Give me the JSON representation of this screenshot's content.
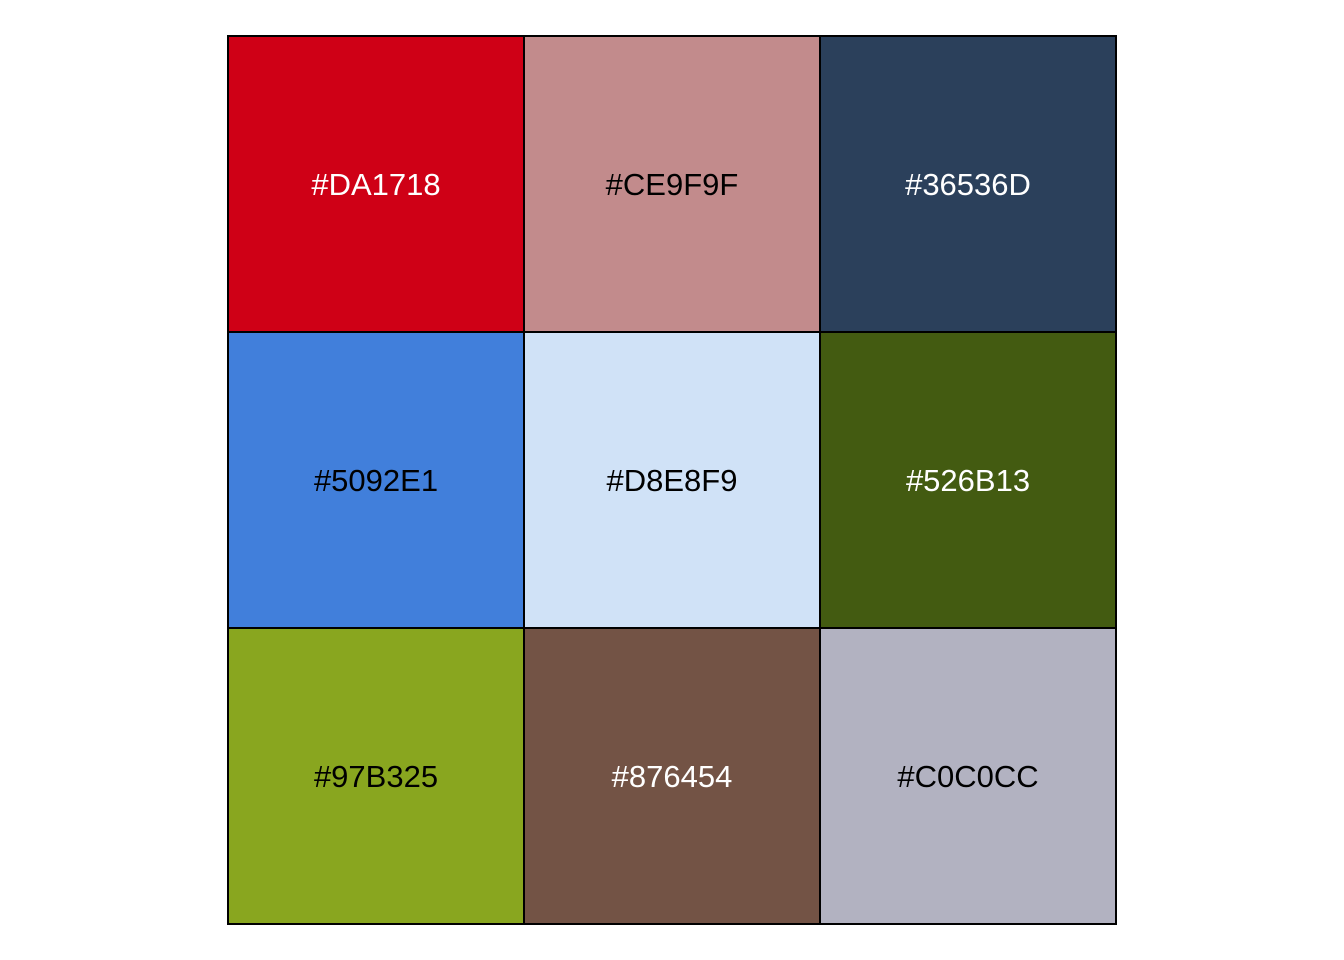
{
  "swatches": [
    {
      "label": "#DA1718",
      "fill": "#CF0016",
      "text_color": "#FFFFFF"
    },
    {
      "label": "#CE9F9F",
      "fill": "#C28B8C",
      "text_color": "#000000"
    },
    {
      "label": "#36536D",
      "fill": "#2B405B",
      "text_color": "#FFFFFF"
    },
    {
      "label": "#5092E1",
      "fill": "#417FDB",
      "text_color": "#000000"
    },
    {
      "label": "#D8E8F9",
      "fill": "#D0E2F7",
      "text_color": "#000000"
    },
    {
      "label": "#526B13",
      "fill": "#435B11",
      "text_color": "#FFFFFF"
    },
    {
      "label": "#97B325",
      "fill": "#89A61F",
      "text_color": "#000000"
    },
    {
      "label": "#876454",
      "fill": "#735345",
      "text_color": "#FFFFFF"
    },
    {
      "label": "#C0C0CC",
      "fill": "#B2B2C1",
      "text_color": "#000000"
    }
  ]
}
